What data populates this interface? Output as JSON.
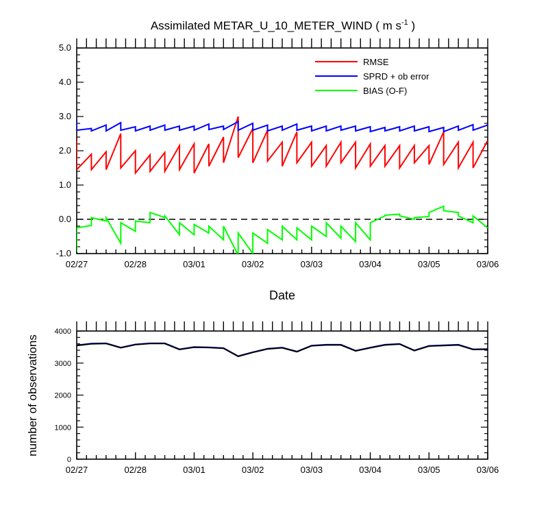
{
  "chart_data": [
    {
      "type": "line",
      "title": "Assimilated METAR_U_10_METER_WIND ( m s",
      "title_superscript": "-1",
      "title_suffix": " )",
      "xlabel": "Date",
      "ylabel": "",
      "x_ticks": [
        "02/27",
        "02/28",
        "03/01",
        "03/02",
        "03/03",
        "03/04",
        "03/05",
        "03/06"
      ],
      "ylim": [
        -1.0,
        5.0
      ],
      "y_ticks": [
        "-1.0",
        "0.0",
        "1.0",
        "2.0",
        "3.0",
        "4.0",
        "5.0"
      ],
      "xlim_days": [
        0,
        7
      ],
      "reference_line": {
        "y": 0.0,
        "style": "dashed"
      },
      "legend_position": "top-right",
      "series": [
        {
          "name": "RMSE",
          "color": "#ff0000",
          "x": [
            0.0,
            0.0,
            0.25,
            0.25,
            0.5,
            0.5,
            0.75,
            0.75,
            1.0,
            1.0,
            1.25,
            1.25,
            1.5,
            1.5,
            1.75,
            1.75,
            2.0,
            2.0,
            2.25,
            2.25,
            2.5,
            2.5,
            2.75,
            2.75,
            3.0,
            3.0,
            3.25,
            3.25,
            3.5,
            3.5,
            3.75,
            3.75,
            4.0,
            4.0,
            4.25,
            4.25,
            4.5,
            4.5,
            4.75,
            4.75,
            5.0,
            5.0,
            5.25,
            5.25,
            5.5,
            5.5,
            5.75,
            5.75,
            6.0,
            6.0,
            6.25,
            6.25,
            6.5,
            6.5,
            6.75,
            6.75,
            7.0
          ],
          "values": [
            2.35,
            1.45,
            1.9,
            1.45,
            1.97,
            1.45,
            2.5,
            1.5,
            2.0,
            1.35,
            1.88,
            1.4,
            1.95,
            1.4,
            2.15,
            1.45,
            2.2,
            1.35,
            2.2,
            1.55,
            2.4,
            1.65,
            3.0,
            1.8,
            2.65,
            1.65,
            2.6,
            1.7,
            2.25,
            1.55,
            2.55,
            1.65,
            2.25,
            1.55,
            2.15,
            1.55,
            2.25,
            1.65,
            2.25,
            1.5,
            2.2,
            1.55,
            2.15,
            1.55,
            2.15,
            1.5,
            2.15,
            1.65,
            2.15,
            1.6,
            2.55,
            1.6,
            2.25,
            1.5,
            2.25,
            1.5,
            2.3
          ]
        },
        {
          "name": "SPRD + ob error",
          "color": "#0000ff",
          "x": [
            0.0,
            0.0,
            0.25,
            0.25,
            0.5,
            0.5,
            0.75,
            0.75,
            1.0,
            1.0,
            1.25,
            1.25,
            1.5,
            1.5,
            1.75,
            1.75,
            2.0,
            2.0,
            2.25,
            2.25,
            2.5,
            2.5,
            2.75,
            2.75,
            3.0,
            3.0,
            3.25,
            3.25,
            3.5,
            3.5,
            3.75,
            3.75,
            4.0,
            4.0,
            4.25,
            4.25,
            4.5,
            4.5,
            4.75,
            4.75,
            5.0,
            5.0,
            5.25,
            5.25,
            5.5,
            5.5,
            5.75,
            5.75,
            6.0,
            6.0,
            6.25,
            6.25,
            6.5,
            6.5,
            6.75,
            6.75,
            7.0
          ],
          "values": [
            2.9,
            2.6,
            2.65,
            2.58,
            2.75,
            2.58,
            2.82,
            2.6,
            2.7,
            2.58,
            2.72,
            2.6,
            2.75,
            2.6,
            2.72,
            2.6,
            2.72,
            2.6,
            2.78,
            2.62,
            2.72,
            2.62,
            2.85,
            2.6,
            2.8,
            2.6,
            2.75,
            2.58,
            2.72,
            2.6,
            2.78,
            2.6,
            2.72,
            2.58,
            2.72,
            2.58,
            2.72,
            2.6,
            2.72,
            2.58,
            2.7,
            2.56,
            2.68,
            2.58,
            2.7,
            2.58,
            2.72,
            2.58,
            2.7,
            2.56,
            2.68,
            2.56,
            2.72,
            2.6,
            2.76,
            2.6,
            2.75
          ]
        },
        {
          "name": "BIAS (O-F)",
          "color": "#00ff00",
          "x": [
            0.0,
            0.0,
            0.25,
            0.25,
            0.5,
            0.5,
            0.75,
            0.75,
            1.0,
            1.0,
            1.25,
            1.25,
            1.5,
            1.5,
            1.75,
            1.75,
            2.0,
            2.0,
            2.25,
            2.25,
            2.5,
            2.5,
            2.75,
            2.75,
            3.0,
            3.0,
            3.25,
            3.25,
            3.5,
            3.5,
            3.75,
            3.75,
            4.0,
            4.0,
            4.25,
            4.25,
            4.5,
            4.5,
            4.75,
            4.75,
            5.0,
            5.0,
            5.25,
            5.25,
            5.5,
            5.5,
            5.75,
            5.75,
            6.0,
            6.0,
            6.25,
            6.25,
            6.5,
            6.5,
            6.75,
            6.75,
            7.0
          ],
          "values": [
            -0.95,
            -0.25,
            -0.18,
            0.05,
            -0.05,
            0.05,
            -0.7,
            -0.1,
            -0.35,
            -0.05,
            -0.1,
            0.2,
            0.05,
            0.1,
            -0.45,
            -0.1,
            -0.45,
            -0.15,
            -0.4,
            -0.2,
            -0.6,
            -0.2,
            -1.05,
            -0.4,
            -1.0,
            -0.4,
            -0.7,
            -0.3,
            -0.6,
            -0.2,
            -0.6,
            -0.25,
            -0.6,
            -0.2,
            -0.5,
            -0.1,
            -0.55,
            -0.2,
            -0.65,
            -0.1,
            -0.6,
            -0.1,
            0.1,
            0.12,
            0.15,
            0.1,
            0.0,
            0.05,
            0.08,
            0.2,
            0.38,
            0.25,
            0.2,
            0.1,
            -0.1,
            0.1,
            -0.25
          ]
        }
      ]
    },
    {
      "type": "line",
      "title": "",
      "xlabel": "",
      "ylabel": "number of observations",
      "x_ticks": [
        "02/27",
        "02/28",
        "03/01",
        "03/02",
        "03/03",
        "03/04",
        "03/05",
        "03/06"
      ],
      "ylim": [
        0,
        4500
      ],
      "y_ticks": [
        "0",
        "1000",
        "2000",
        "3000",
        "4000"
      ],
      "xlim_days": [
        0,
        7
      ],
      "series": [
        {
          "color": "#0000ff",
          "x": [
            0.0,
            0.25,
            0.5,
            0.75,
            1.0,
            1.25,
            1.5,
            1.75,
            2.0,
            2.25,
            2.5,
            2.75,
            3.0,
            3.25,
            3.5,
            3.75,
            4.0,
            4.25,
            4.5,
            4.75,
            5.0,
            5.25,
            5.5,
            5.75,
            6.0,
            6.25,
            6.5,
            6.75,
            7.0
          ],
          "values": [
            4000,
            4060,
            4070,
            3920,
            4030,
            4070,
            4070,
            3860,
            3940,
            3930,
            3900,
            3620,
            3760,
            3880,
            3920,
            3780,
            3990,
            4020,
            4020,
            3810,
            3920,
            4020,
            4050,
            3820,
            3980,
            4000,
            4020,
            3860,
            3870
          ]
        },
        {
          "color": "#000000",
          "x": [
            0.0,
            0.25,
            0.5,
            0.75,
            1.0,
            1.25,
            1.5,
            1.75,
            2.0,
            2.25,
            2.5,
            2.75,
            3.0,
            3.25,
            3.5,
            3.75,
            4.0,
            4.25,
            4.5,
            4.75,
            5.0,
            5.25,
            5.5,
            5.75,
            6.0,
            6.25,
            6.5,
            6.75,
            7.0
          ],
          "values": [
            3990,
            4050,
            4060,
            3910,
            4020,
            4060,
            4060,
            3850,
            3930,
            3920,
            3890,
            3610,
            3750,
            3870,
            3910,
            3770,
            3980,
            4010,
            4010,
            3800,
            3910,
            4010,
            4040,
            3810,
            3970,
            3990,
            4010,
            3850,
            3860
          ]
        }
      ]
    }
  ]
}
